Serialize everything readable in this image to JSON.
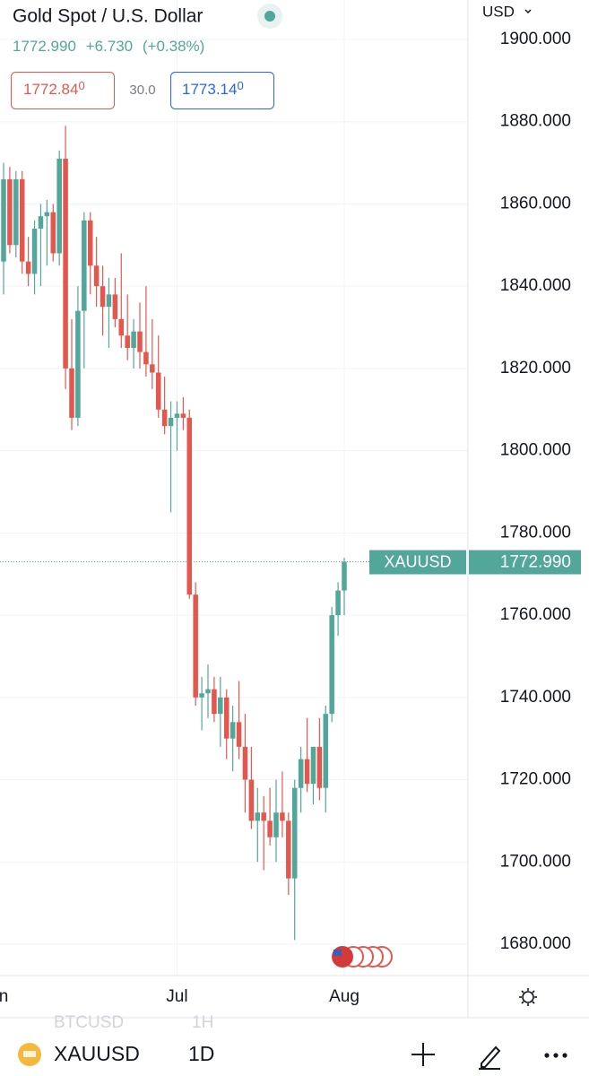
{
  "chart_data": {
    "type": "candlestick",
    "title": "Gold Spot / U.S. Dollar",
    "header": {
      "price": "1772.990",
      "change": "+6.730",
      "change_pct": "(+0.38%)",
      "bid": "1772.84",
      "bid_fraction": "0",
      "spread": "30.0",
      "ask": "1773.14",
      "ask_fraction": "0"
    },
    "currency": "USD",
    "symbol": "XAUUSD",
    "interval": "1D",
    "faded_symbol": "BTCUSD",
    "faded_interval": "1H",
    "last_price": {
      "value": 1772.99,
      "label": "1772.990"
    },
    "up_color": "#53a69a",
    "down_color": "#e3574f",
    "grid": true,
    "ylim": [
      1680,
      1900
    ],
    "yticks": [
      {
        "value": 1680,
        "label": "1680.000"
      },
      {
        "value": 1700,
        "label": "1700.000"
      },
      {
        "value": 1720,
        "label": "1720.000"
      },
      {
        "value": 1740,
        "label": "1740.000"
      },
      {
        "value": 1760,
        "label": "1760.000"
      },
      {
        "value": 1780,
        "label": "1780.000"
      },
      {
        "value": 1800,
        "label": "1800.000"
      },
      {
        "value": 1820,
        "label": "1820.000"
      },
      {
        "value": 1840,
        "label": "1840.000"
      },
      {
        "value": 1860,
        "label": "1860.000"
      },
      {
        "value": 1880,
        "label": "1880.000"
      },
      {
        "value": 1900,
        "label": "1900.000"
      }
    ],
    "categories": [
      "Jun",
      null,
      null,
      null,
      null,
      null,
      null,
      null,
      null,
      null,
      null,
      null,
      null,
      null,
      null,
      null,
      null,
      null,
      null,
      null,
      null,
      null,
      null,
      null,
      null,
      null,
      null,
      null,
      "Jul",
      null,
      null,
      null,
      null,
      null,
      null,
      null,
      null,
      null,
      null,
      null,
      null,
      null,
      null,
      null,
      null,
      null,
      null,
      null,
      null,
      null,
      null,
      null,
      null,
      null,
      null,
      "Aug"
    ],
    "candles": [
      {
        "open": 1846,
        "high": 1870,
        "low": 1838,
        "close": 1866
      },
      {
        "open": 1866,
        "high": 1869,
        "low": 1848,
        "close": 1850
      },
      {
        "open": 1850,
        "high": 1868,
        "low": 1847,
        "close": 1866
      },
      {
        "open": 1866,
        "high": 1868,
        "low": 1843,
        "close": 1846
      },
      {
        "open": 1846,
        "high": 1852,
        "low": 1840,
        "close": 1843
      },
      {
        "open": 1843,
        "high": 1856,
        "low": 1838,
        "close": 1854
      },
      {
        "open": 1854,
        "high": 1860,
        "low": 1840,
        "close": 1857
      },
      {
        "open": 1857,
        "high": 1861,
        "low": 1845,
        "close": 1858
      },
      {
        "open": 1858,
        "high": 1860,
        "low": 1846,
        "close": 1848
      },
      {
        "open": 1848,
        "high": 1873,
        "low": 1845,
        "close": 1871
      },
      {
        "open": 1871,
        "high": 1879,
        "low": 1815,
        "close": 1820
      },
      {
        "open": 1820,
        "high": 1832,
        "low": 1805,
        "close": 1808
      },
      {
        "open": 1808,
        "high": 1840,
        "low": 1806,
        "close": 1834
      },
      {
        "open": 1834,
        "high": 1858,
        "low": 1820,
        "close": 1856
      },
      {
        "open": 1856,
        "high": 1858,
        "low": 1838,
        "close": 1845
      },
      {
        "open": 1845,
        "high": 1852,
        "low": 1835,
        "close": 1840
      },
      {
        "open": 1840,
        "high": 1845,
        "low": 1828,
        "close": 1835
      },
      {
        "open": 1835,
        "high": 1842,
        "low": 1825,
        "close": 1838
      },
      {
        "open": 1838,
        "high": 1842,
        "low": 1830,
        "close": 1832
      },
      {
        "open": 1832,
        "high": 1848,
        "low": 1825,
        "close": 1828
      },
      {
        "open": 1828,
        "high": 1838,
        "low": 1822,
        "close": 1825
      },
      {
        "open": 1825,
        "high": 1832,
        "low": 1820,
        "close": 1829
      },
      {
        "open": 1829,
        "high": 1836,
        "low": 1820,
        "close": 1824
      },
      {
        "open": 1824,
        "high": 1840,
        "low": 1818,
        "close": 1821
      },
      {
        "open": 1821,
        "high": 1832,
        "low": 1815,
        "close": 1819
      },
      {
        "open": 1819,
        "high": 1828,
        "low": 1808,
        "close": 1810
      },
      {
        "open": 1810,
        "high": 1818,
        "low": 1804,
        "close": 1806
      },
      {
        "open": 1806,
        "high": 1812,
        "low": 1785,
        "close": 1808
      },
      {
        "open": 1808,
        "high": 1812,
        "low": 1800,
        "close": 1809
      },
      {
        "open": 1809,
        "high": 1813,
        "low": 1805,
        "close": 1808
      },
      {
        "open": 1808,
        "high": 1810,
        "low": 1764,
        "close": 1765
      },
      {
        "open": 1765,
        "high": 1768,
        "low": 1738,
        "close": 1740
      },
      {
        "open": 1740,
        "high": 1745,
        "low": 1732,
        "close": 1741
      },
      {
        "open": 1741,
        "high": 1748,
        "low": 1735,
        "close": 1742
      },
      {
        "open": 1742,
        "high": 1745,
        "low": 1734,
        "close": 1736
      },
      {
        "open": 1736,
        "high": 1745,
        "low": 1728,
        "close": 1740
      },
      {
        "open": 1740,
        "high": 1742,
        "low": 1725,
        "close": 1730
      },
      {
        "open": 1730,
        "high": 1738,
        "low": 1722,
        "close": 1734
      },
      {
        "open": 1734,
        "high": 1744,
        "low": 1725,
        "close": 1728
      },
      {
        "open": 1728,
        "high": 1736,
        "low": 1712,
        "close": 1720
      },
      {
        "open": 1720,
        "high": 1728,
        "low": 1708,
        "close": 1710
      },
      {
        "open": 1710,
        "high": 1718,
        "low": 1700,
        "close": 1712
      },
      {
        "open": 1712,
        "high": 1716,
        "low": 1698,
        "close": 1710
      },
      {
        "open": 1710,
        "high": 1718,
        "low": 1704,
        "close": 1706
      },
      {
        "open": 1706,
        "high": 1720,
        "low": 1700,
        "close": 1712
      },
      {
        "open": 1712,
        "high": 1722,
        "low": 1706,
        "close": 1710
      },
      {
        "open": 1710,
        "high": 1712,
        "low": 1692,
        "close": 1696
      },
      {
        "open": 1696,
        "high": 1720,
        "low": 1681,
        "close": 1718
      },
      {
        "open": 1718,
        "high": 1728,
        "low": 1712,
        "close": 1725
      },
      {
        "open": 1725,
        "high": 1735,
        "low": 1717,
        "close": 1719
      },
      {
        "open": 1719,
        "high": 1728,
        "low": 1714,
        "close": 1728
      },
      {
        "open": 1728,
        "high": 1735,
        "low": 1715,
        "close": 1718
      },
      {
        "open": 1718,
        "high": 1738,
        "low": 1712,
        "close": 1736
      },
      {
        "open": 1736,
        "high": 1762,
        "low": 1734,
        "close": 1760
      },
      {
        "open": 1760,
        "high": 1768,
        "low": 1755,
        "close": 1766
      },
      {
        "open": 1766,
        "high": 1774,
        "low": 1760,
        "close": 1772.99
      }
    ]
  }
}
